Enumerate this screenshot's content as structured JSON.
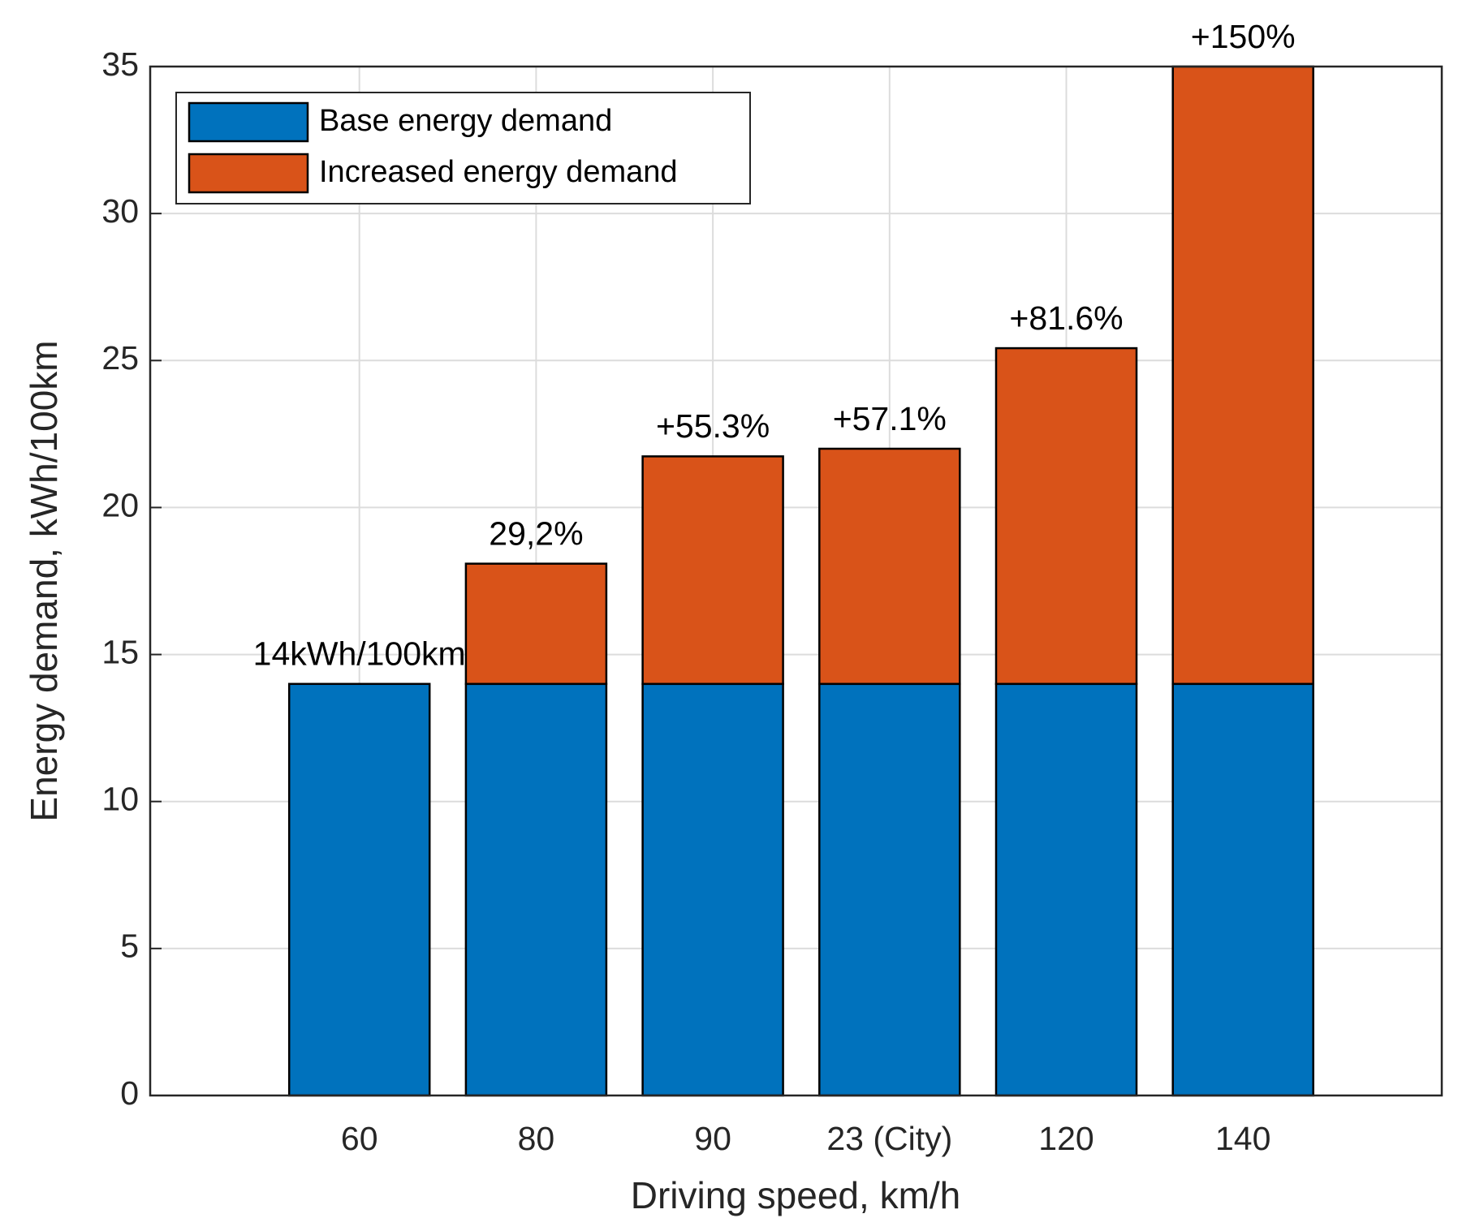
{
  "chart_data": {
    "type": "stacked-bar",
    "x_label": "Driving speed, km/h",
    "y_label": "Energy demand, kWh/100km",
    "categories": [
      "60",
      "80",
      "90",
      "23 (City)",
      "120",
      "140"
    ],
    "series": [
      {
        "name": "Base energy demand",
        "color": "#0072bd",
        "values": [
          14,
          14,
          14,
          14,
          14,
          14
        ]
      },
      {
        "name": "Increased energy demand",
        "color": "#d95319",
        "values": [
          0,
          4.09,
          7.74,
          8.0,
          11.42,
          21
        ]
      }
    ],
    "annotations": [
      "14kWh/100km",
      "29,2%",
      "+55.3%",
      "+57.1%",
      "+81.6%",
      "+150%"
    ],
    "ylim": [
      0,
      35
    ],
    "yticks": [
      0,
      5,
      10,
      15,
      20,
      25,
      30,
      35
    ],
    "grid": true,
    "legend": "upper left"
  }
}
